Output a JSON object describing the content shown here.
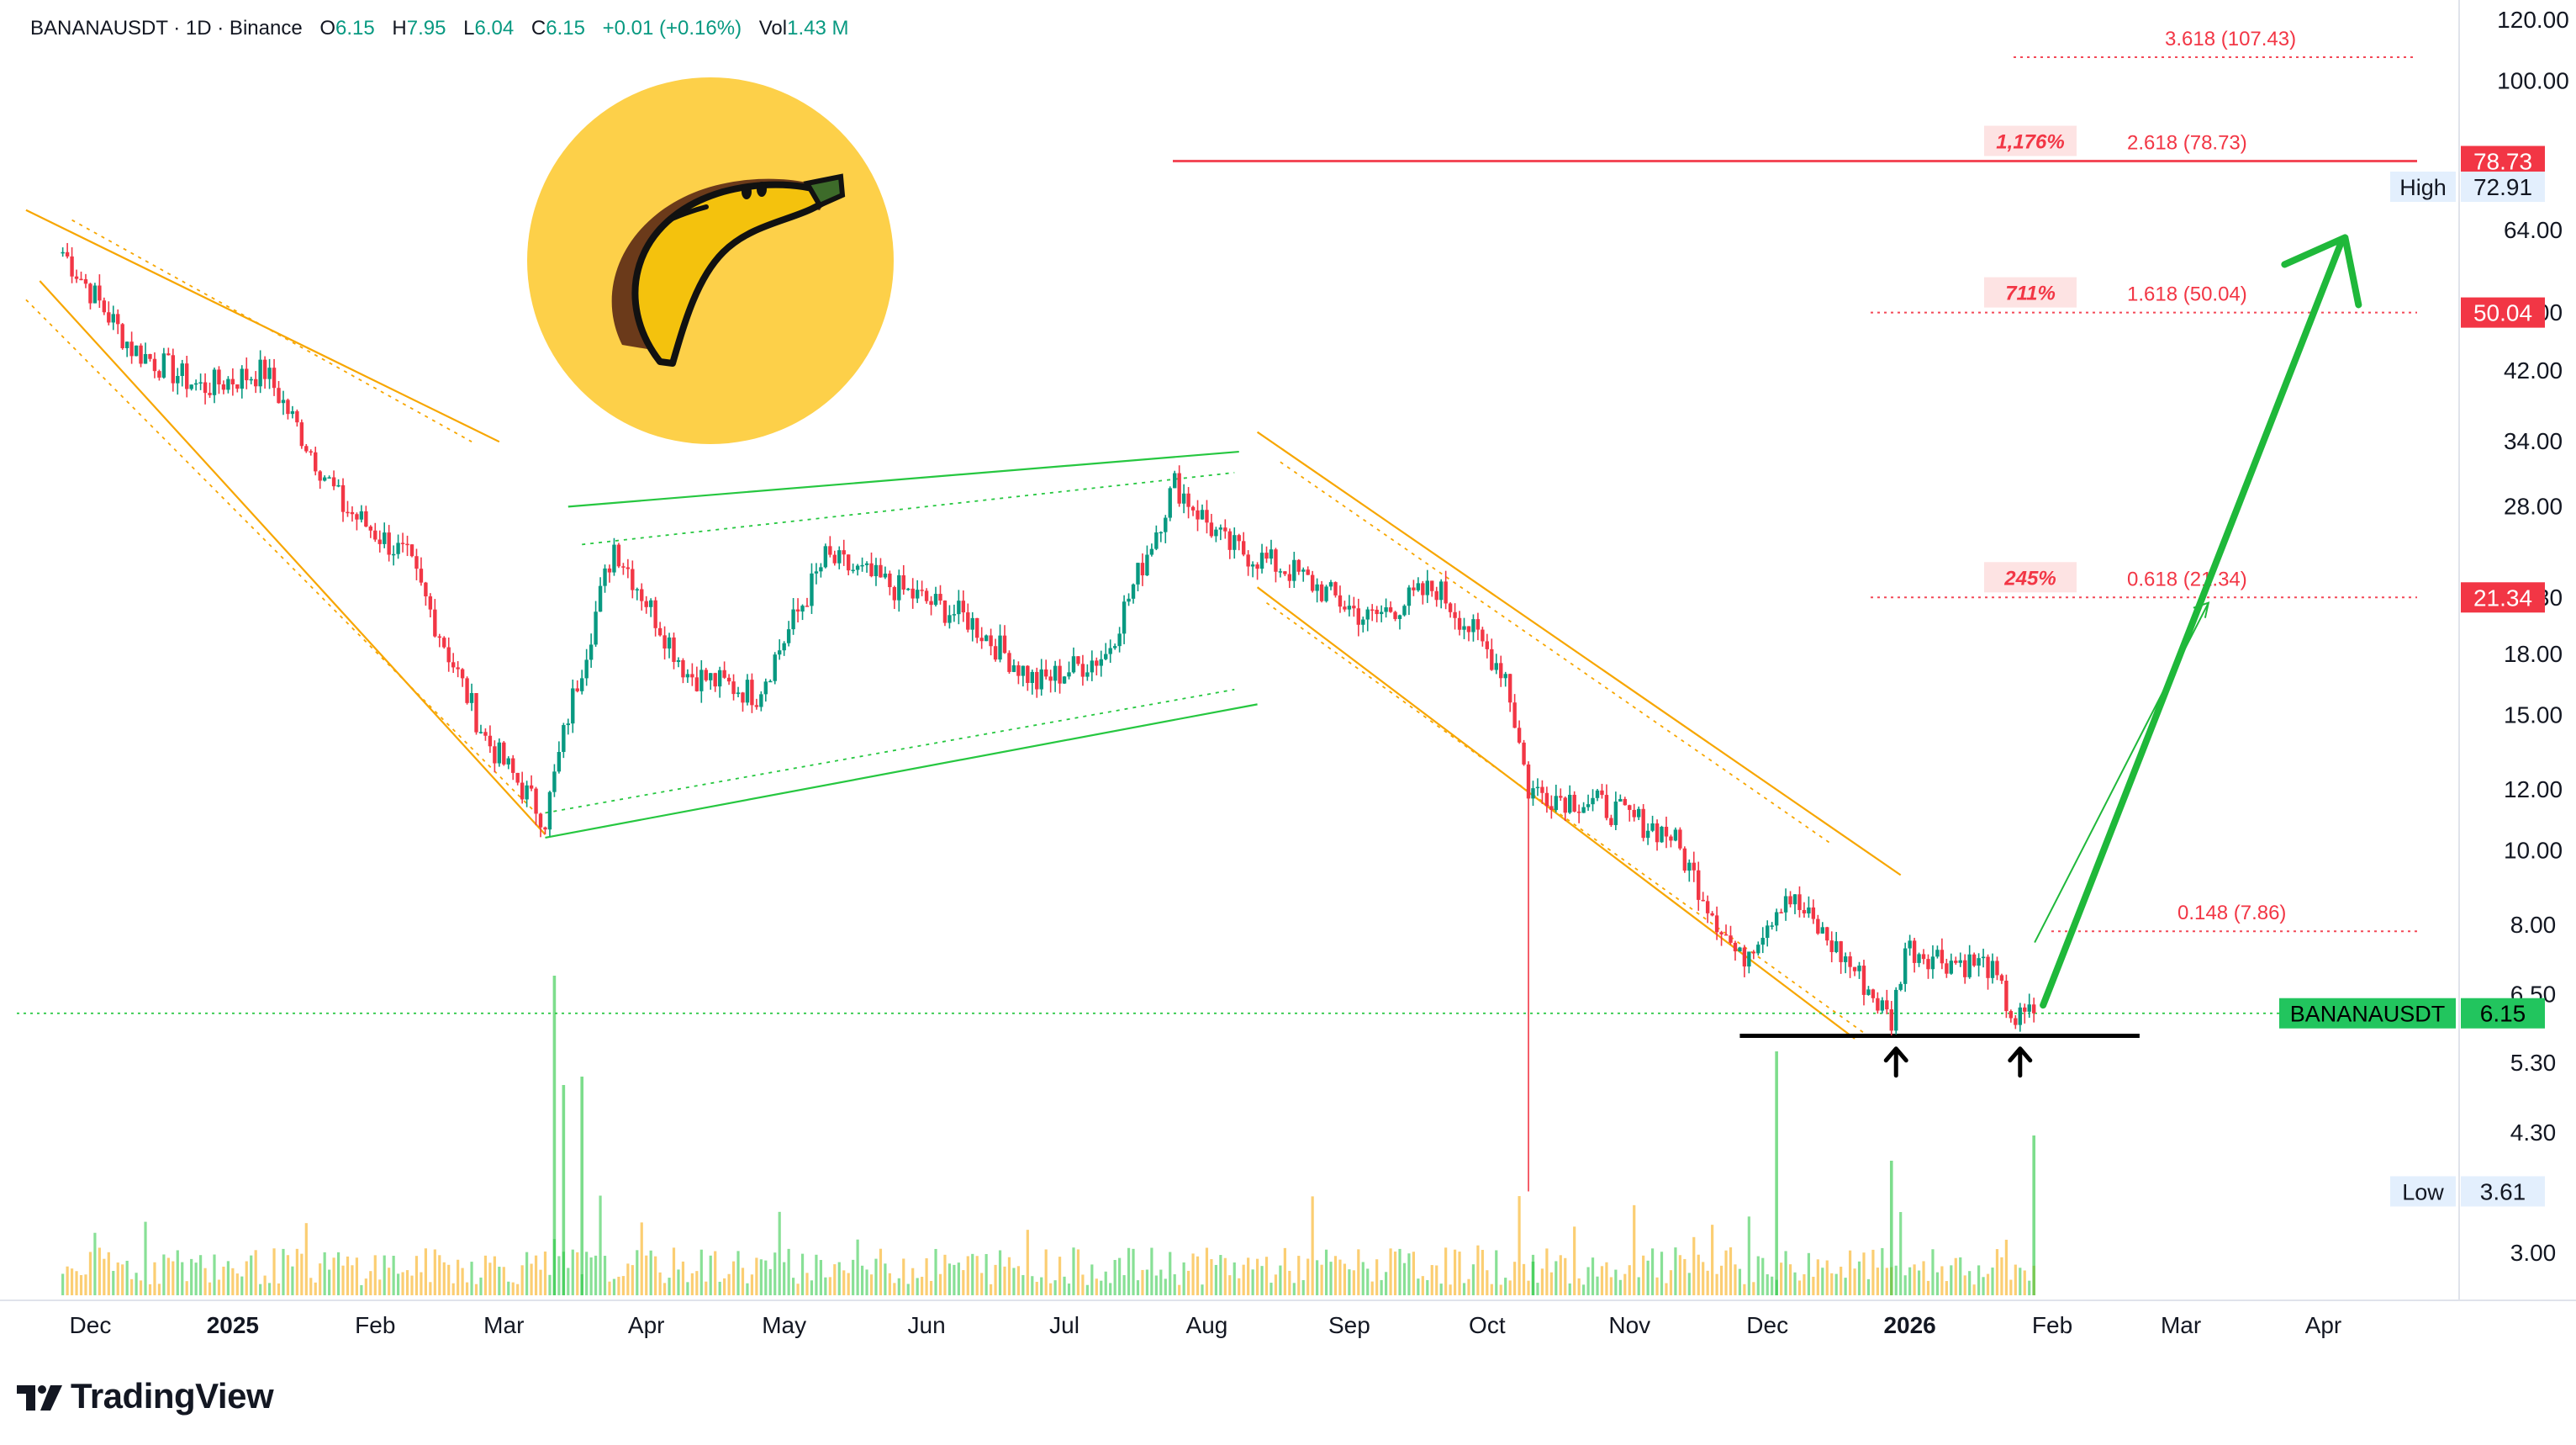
{
  "header": {
    "symbol": "BANANAUSDT · 1D · Binance",
    "o_label": "O",
    "o_value": "6.15",
    "h_label": "H",
    "h_value": "7.95",
    "l_label": "L",
    "l_value": "6.04",
    "c_label": "C",
    "c_value": "6.15",
    "change": "+0.01 (+0.16%)",
    "vol_label": "Vol",
    "vol_value": "1.43 M"
  },
  "brand": {
    "name": "TradingView",
    "logo_glyph": "17"
  },
  "colors": {
    "up": "#089981",
    "down": "#f23645",
    "channel": "#f7a600",
    "wedge": "#26c740",
    "fib": "#f23645",
    "arrow": "#1fb83a",
    "current_price_bg": "#22c55e",
    "support": "#000000",
    "volume_up": "#26c740",
    "volume_down": "#f7a600",
    "coin": "#fdd049",
    "banana": "#f4c20d"
  },
  "chart_data": {
    "type": "candlestick",
    "title": "",
    "ylim": [
      2.6,
      125
    ],
    "log_scale": true,
    "grid": false,
    "y_ticks": [
      "120.00",
      "100.00",
      "64.00",
      "50.00",
      "42.00",
      "34.00",
      "28.00",
      "21.30",
      "18.00",
      "15.00",
      "12.00",
      "10.00",
      "8.00",
      "6.50",
      "5.30",
      "4.30",
      "3.00"
    ],
    "x_ticks": [
      "Dec",
      "2025",
      "Feb",
      "Mar",
      "Apr",
      "May",
      "Jun",
      "Jul",
      "Aug",
      "Sep",
      "Oct",
      "Nov",
      "Dec",
      "2026",
      "Feb",
      "Mar",
      "Apr"
    ],
    "key_prices": [
      {
        "date": "2024-11-25",
        "price": 60.0
      },
      {
        "date": "2024-12-10",
        "price": 45.0
      },
      {
        "date": "2024-12-25",
        "price": 40.0
      },
      {
        "date": "2025-01-08",
        "price": 42.0
      },
      {
        "date": "2025-01-25",
        "price": 28.0
      },
      {
        "date": "2025-02-08",
        "price": 24.0
      },
      {
        "date": "2025-02-25",
        "price": 14.0
      },
      {
        "date": "2025-03-10",
        "price": 11.0
      },
      {
        "date": "2025-03-15",
        "price": 15.0
      },
      {
        "date": "2025-03-25",
        "price": 25.0
      },
      {
        "date": "2025-04-10",
        "price": 17.0
      },
      {
        "date": "2025-04-25",
        "price": 16.0
      },
      {
        "date": "2025-05-10",
        "price": 24.0
      },
      {
        "date": "2025-05-25",
        "price": 22.0
      },
      {
        "date": "2025-06-10",
        "price": 20.0
      },
      {
        "date": "2025-06-25",
        "price": 16.5
      },
      {
        "date": "2025-07-10",
        "price": 18.0
      },
      {
        "date": "2025-07-25",
        "price": 30.0
      },
      {
        "date": "2025-08-05",
        "price": 25.0
      },
      {
        "date": "2025-08-20",
        "price": 23.0
      },
      {
        "date": "2025-09-05",
        "price": 20.0
      },
      {
        "date": "2025-09-20",
        "price": 22.0
      },
      {
        "date": "2025-10-05",
        "price": 17.0
      },
      {
        "date": "2025-10-10",
        "price": 12.0
      },
      {
        "date": "2025-10-25",
        "price": 11.5
      },
      {
        "date": "2025-11-10",
        "price": 10.5
      },
      {
        "date": "2025-11-25",
        "price": 7.2
      },
      {
        "date": "2025-12-05",
        "price": 8.8
      },
      {
        "date": "2025-12-20",
        "price": 7.0
      },
      {
        "date": "2025-12-28",
        "price": 6.0
      },
      {
        "date": "2025-12-31",
        "price": 7.5
      },
      {
        "date": "2026-01-10",
        "price": 7.2
      },
      {
        "date": "2026-01-18",
        "price": 7.1
      },
      {
        "date": "2026-01-24",
        "price": 6.0
      },
      {
        "date": "2026-01-28",
        "price": 6.15
      }
    ],
    "spikes": [
      {
        "date": "2025-10-10",
        "low": 3.61
      }
    ],
    "fib_levels": [
      {
        "ratio": "3.618",
        "label": "3.618 (107.43)",
        "price": 107.43,
        "pct": ""
      },
      {
        "ratio": "2.618",
        "label": "2.618 (78.73)",
        "price": 78.73,
        "pct": "1,176%"
      },
      {
        "ratio": "1.618",
        "label": "1.618 (50.04)",
        "price": 50.04,
        "pct": "711%"
      },
      {
        "ratio": "0.618",
        "label": "0.618 (21.34)",
        "price": 21.34,
        "pct": "245%"
      },
      {
        "ratio": "0.148",
        "label": "0.148 (7.86)",
        "price": 7.86,
        "pct": ""
      }
    ],
    "price_tags": [
      {
        "label": "",
        "value": "78.73",
        "price": 78.73,
        "style": "fib"
      },
      {
        "label": "High",
        "value": "72.91",
        "price": 72.91,
        "style": "hl"
      },
      {
        "label": "",
        "value": "50.04",
        "price": 50.04,
        "style": "fib"
      },
      {
        "label": "",
        "value": "21.34",
        "price": 21.34,
        "style": "fib"
      },
      {
        "label": "BANANAUSDT",
        "value": "6.15",
        "price": 6.15,
        "style": "current"
      },
      {
        "label": "Low",
        "value": "3.61",
        "price": 3.61,
        "style": "hl"
      }
    ],
    "support_price": 5.75,
    "current_price": 6.15
  }
}
